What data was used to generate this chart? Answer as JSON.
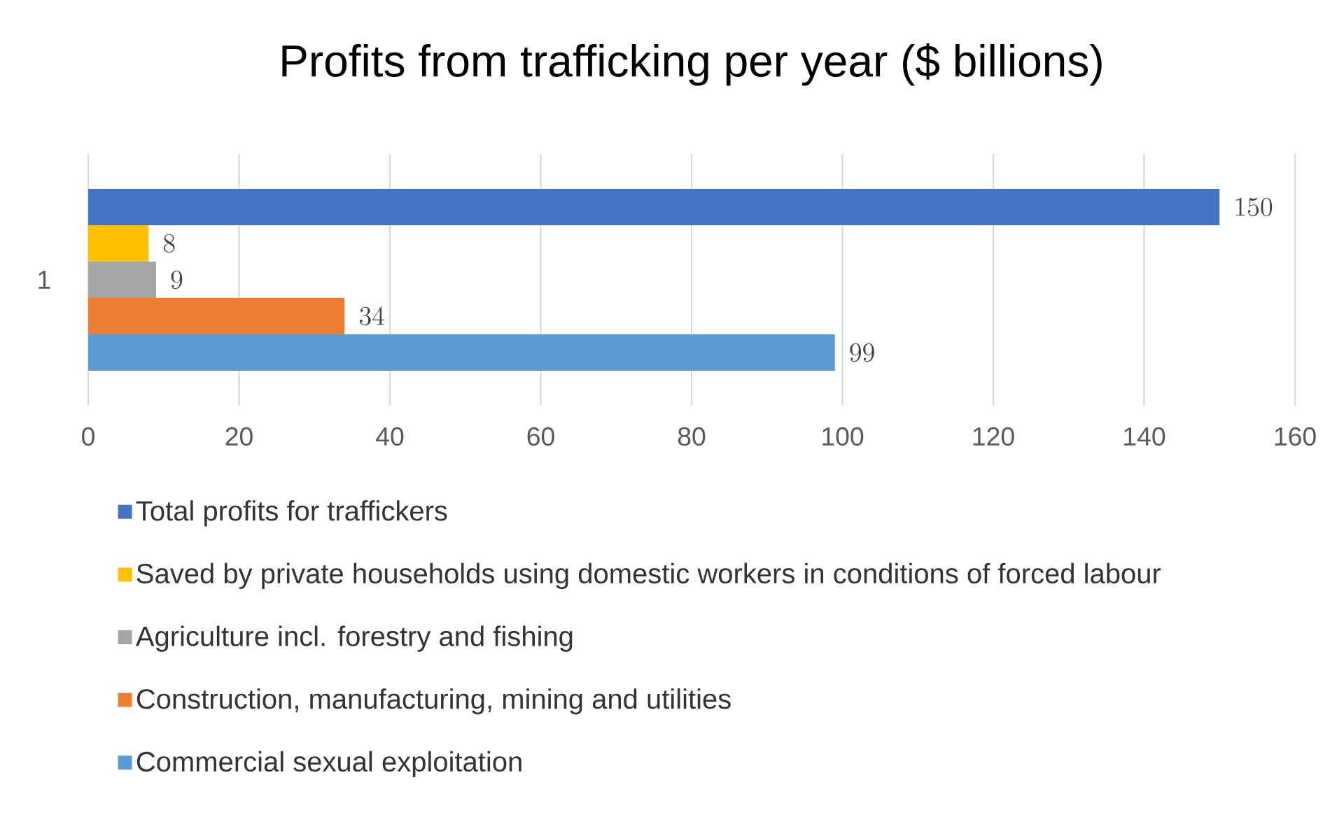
{
  "chart_data": {
    "type": "bar",
    "orientation": "horizontal",
    "title": "Profits from trafficking per year ($ billions)",
    "categories": [
      "1"
    ],
    "series": [
      {
        "name": "Total profits for traffickers",
        "color": "#4472c4",
        "values": [
          150
        ]
      },
      {
        "name": "Saved by private households using domestic workers in conditions of forced labour",
        "color": "#ffc000",
        "values": [
          8
        ]
      },
      {
        "name": "Agriculture incl. forestry and fishing",
        "color": "#a5a5a5",
        "values": [
          9
        ]
      },
      {
        "name": "Construction, manufacturing, mining and utilities",
        "color": "#ed7d31",
        "values": [
          34
        ]
      },
      {
        "name": "Commercial sexual exploitation",
        "color": "#5b9bd5",
        "values": [
          99
        ]
      }
    ],
    "xlim": [
      0,
      160
    ],
    "xticks": [
      0,
      20,
      40,
      60,
      80,
      100,
      120,
      140,
      160
    ],
    "grid": "x",
    "legend": "bottom",
    "data_labels": true
  }
}
